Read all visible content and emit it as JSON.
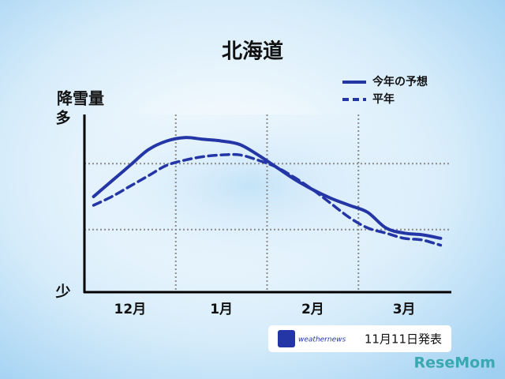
{
  "chart_data": {
    "type": "line",
    "title": "北海道",
    "y_label": "降雪量",
    "categories": [
      null,
      null,
      "12月",
      null,
      null,
      null,
      null,
      "1月",
      null,
      null,
      null,
      null,
      "2月",
      null,
      null,
      null,
      null,
      "3月",
      null,
      null
    ],
    "series": [
      {
        "name": "今年の予想",
        "color": "#2436a6",
        "dash": false,
        "values": [
          55,
          64,
          73,
          82,
          87,
          89,
          88,
          87,
          85,
          79,
          72,
          65,
          59,
          54,
          50,
          46,
          37,
          34,
          33,
          31
        ]
      },
      {
        "name": "平年",
        "color": "#2436a6",
        "dash": true,
        "values": [
          50,
          55,
          61,
          67,
          73,
          76,
          78,
          79,
          79,
          76,
          72,
          66,
          59,
          51,
          43,
          37,
          34,
          31,
          30,
          27
        ]
      }
    ],
    "ylim": [
      0,
      100
    ],
    "yticks": [
      {
        "value": 0,
        "label": "少"
      },
      {
        "value": 100,
        "label": "多"
      }
    ],
    "gridlines": [
      36,
      74
    ],
    "note": "11月11日発表",
    "source": "weathernews",
    "watermark": "ReseMom"
  }
}
